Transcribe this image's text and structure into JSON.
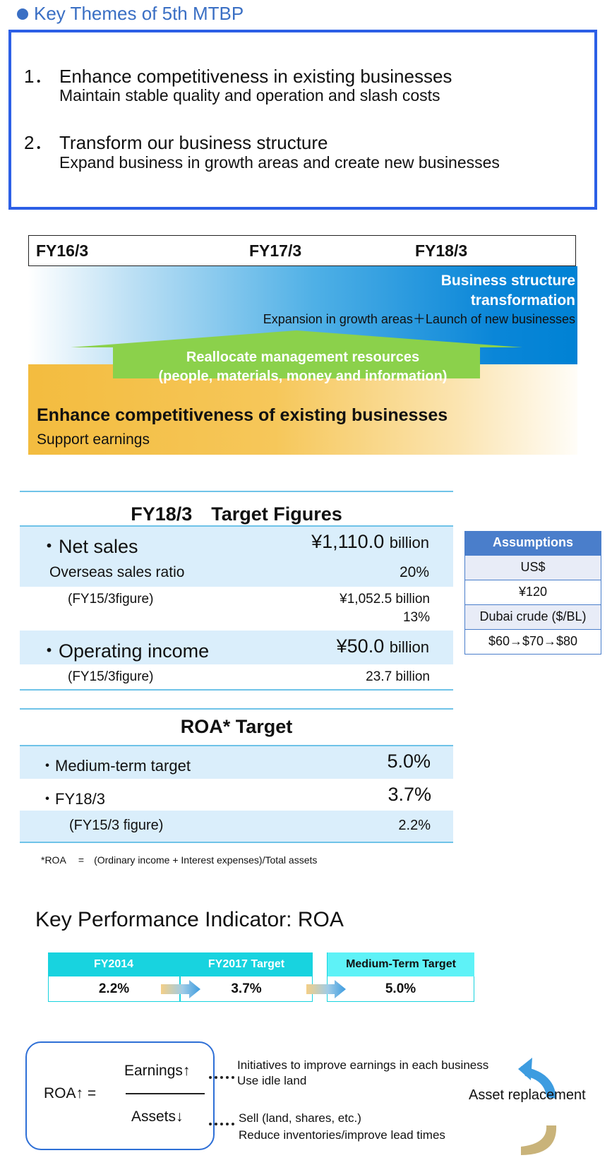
{
  "themes": {
    "heading": "Key Themes of 5th MTBP",
    "items": [
      {
        "num": "1．",
        "title": "Enhance competitiveness in existing businesses",
        "sub": "Maintain stable quality and operation and slash costs"
      },
      {
        "num": "2．",
        "title": "Transform our business structure",
        "sub": "Expand business in growth areas and create new businesses"
      }
    ]
  },
  "timeline": {
    "fy": [
      "FY16/3",
      "FY17/3",
      "FY18/3"
    ],
    "bst_title_1": "Business structure",
    "bst_title_2": "transformation",
    "bst_sub": "Expansion in growth areas＋Launch of new businesses",
    "realloc_1": "Reallocate management resources",
    "realloc_2": "(people, materials, money and information)",
    "ec_title": "Enhance competitiveness of existing businesses",
    "ec_sub": "Support earnings",
    "colors": {
      "blue": "#0082d4",
      "green": "#8bd14b",
      "orange": "#f3bc3f"
    }
  },
  "targets": {
    "title": "FY18/3　Target Figures",
    "net_sales_label": "・Net sales",
    "net_sales_value": "¥1,110.0",
    "net_sales_unit": "billion",
    "overseas_label": "Overseas sales ratio",
    "overseas_value": "20%",
    "fy15_label_1": "(FY15/3figure)",
    "fy15_sales": "¥1,052.5 billion",
    "fy15_ratio": "13%",
    "op_income_label": "・Operating income",
    "op_income_value": "¥50.0",
    "op_income_unit": "billion",
    "fy15_label_2": "(FY15/3figure)",
    "fy15_op": "23.7 billion"
  },
  "assumptions": {
    "title": "Assumptions",
    "rows": [
      "US$",
      "¥120",
      "Dubai crude ($/BL)",
      "$60→$70→$80"
    ]
  },
  "roa": {
    "title": "ROA* Target",
    "medium_label": "・Medium-term target",
    "medium_value": "5.0%",
    "fy18_label": "・FY18/3",
    "fy18_value": "3.7%",
    "fy15_label": "(FY15/3 figure)",
    "fy15_value": "2.2%",
    "footnote": "*ROA 　=　(Ordinary income + Interest expenses)/Total assets"
  },
  "kpi": {
    "title": "Key Performance Indicator: ROA",
    "headers": [
      "FY2014",
      "FY2017 Target",
      "Medium-Term Target"
    ],
    "values": [
      "2.2%",
      "3.7%",
      "5.0%"
    ]
  },
  "formula": {
    "lhs": "ROA↑ =",
    "numerator": "Earnings↑",
    "denominator": "Assets↓",
    "earn_note_1": "Initiatives to improve earnings in each business",
    "earn_note_2": "Use idle land",
    "asset_note_1": "Sell (land, shares, etc.)",
    "asset_note_2": "Reduce inventories/improve lead times",
    "asset_replacement": "Asset replacement"
  }
}
